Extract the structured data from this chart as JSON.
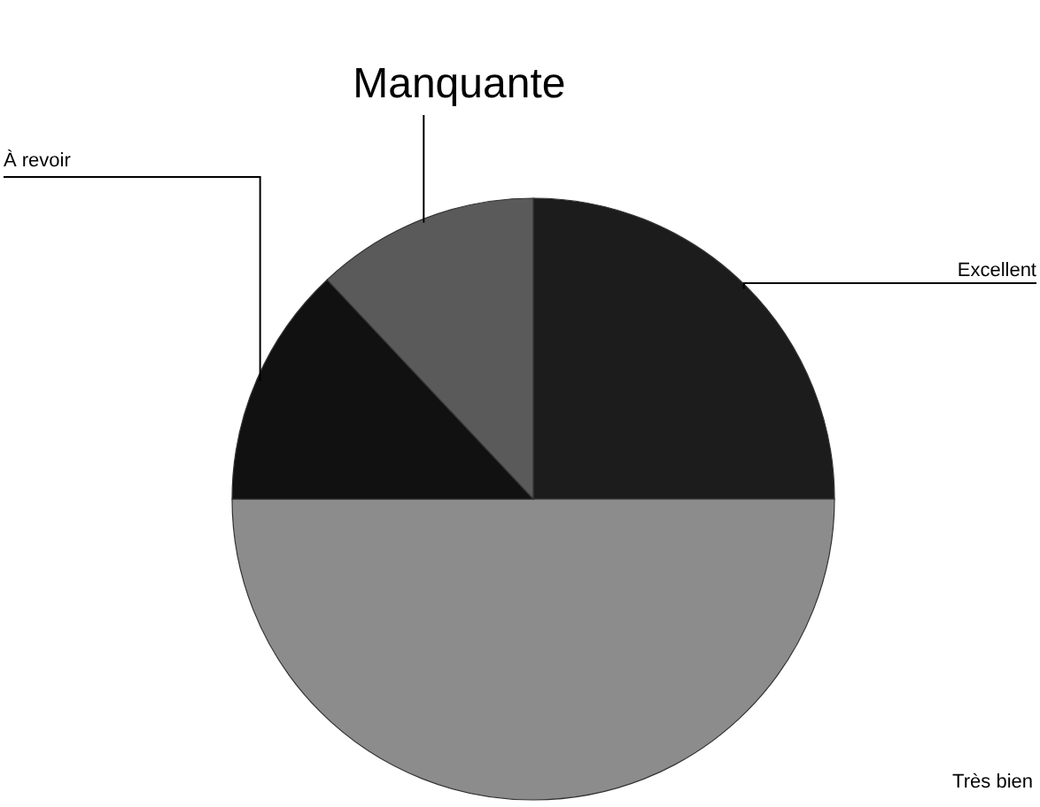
{
  "chart_data": {
    "type": "pie",
    "categories": [
      "Excellent",
      "Très bien",
      "À revoir",
      "Manquante"
    ],
    "values": [
      25,
      50,
      13,
      12
    ],
    "colors": [
      "#1c1c1c",
      "#8c8c8c",
      "#111111",
      "#5a5a5a"
    ]
  }
}
